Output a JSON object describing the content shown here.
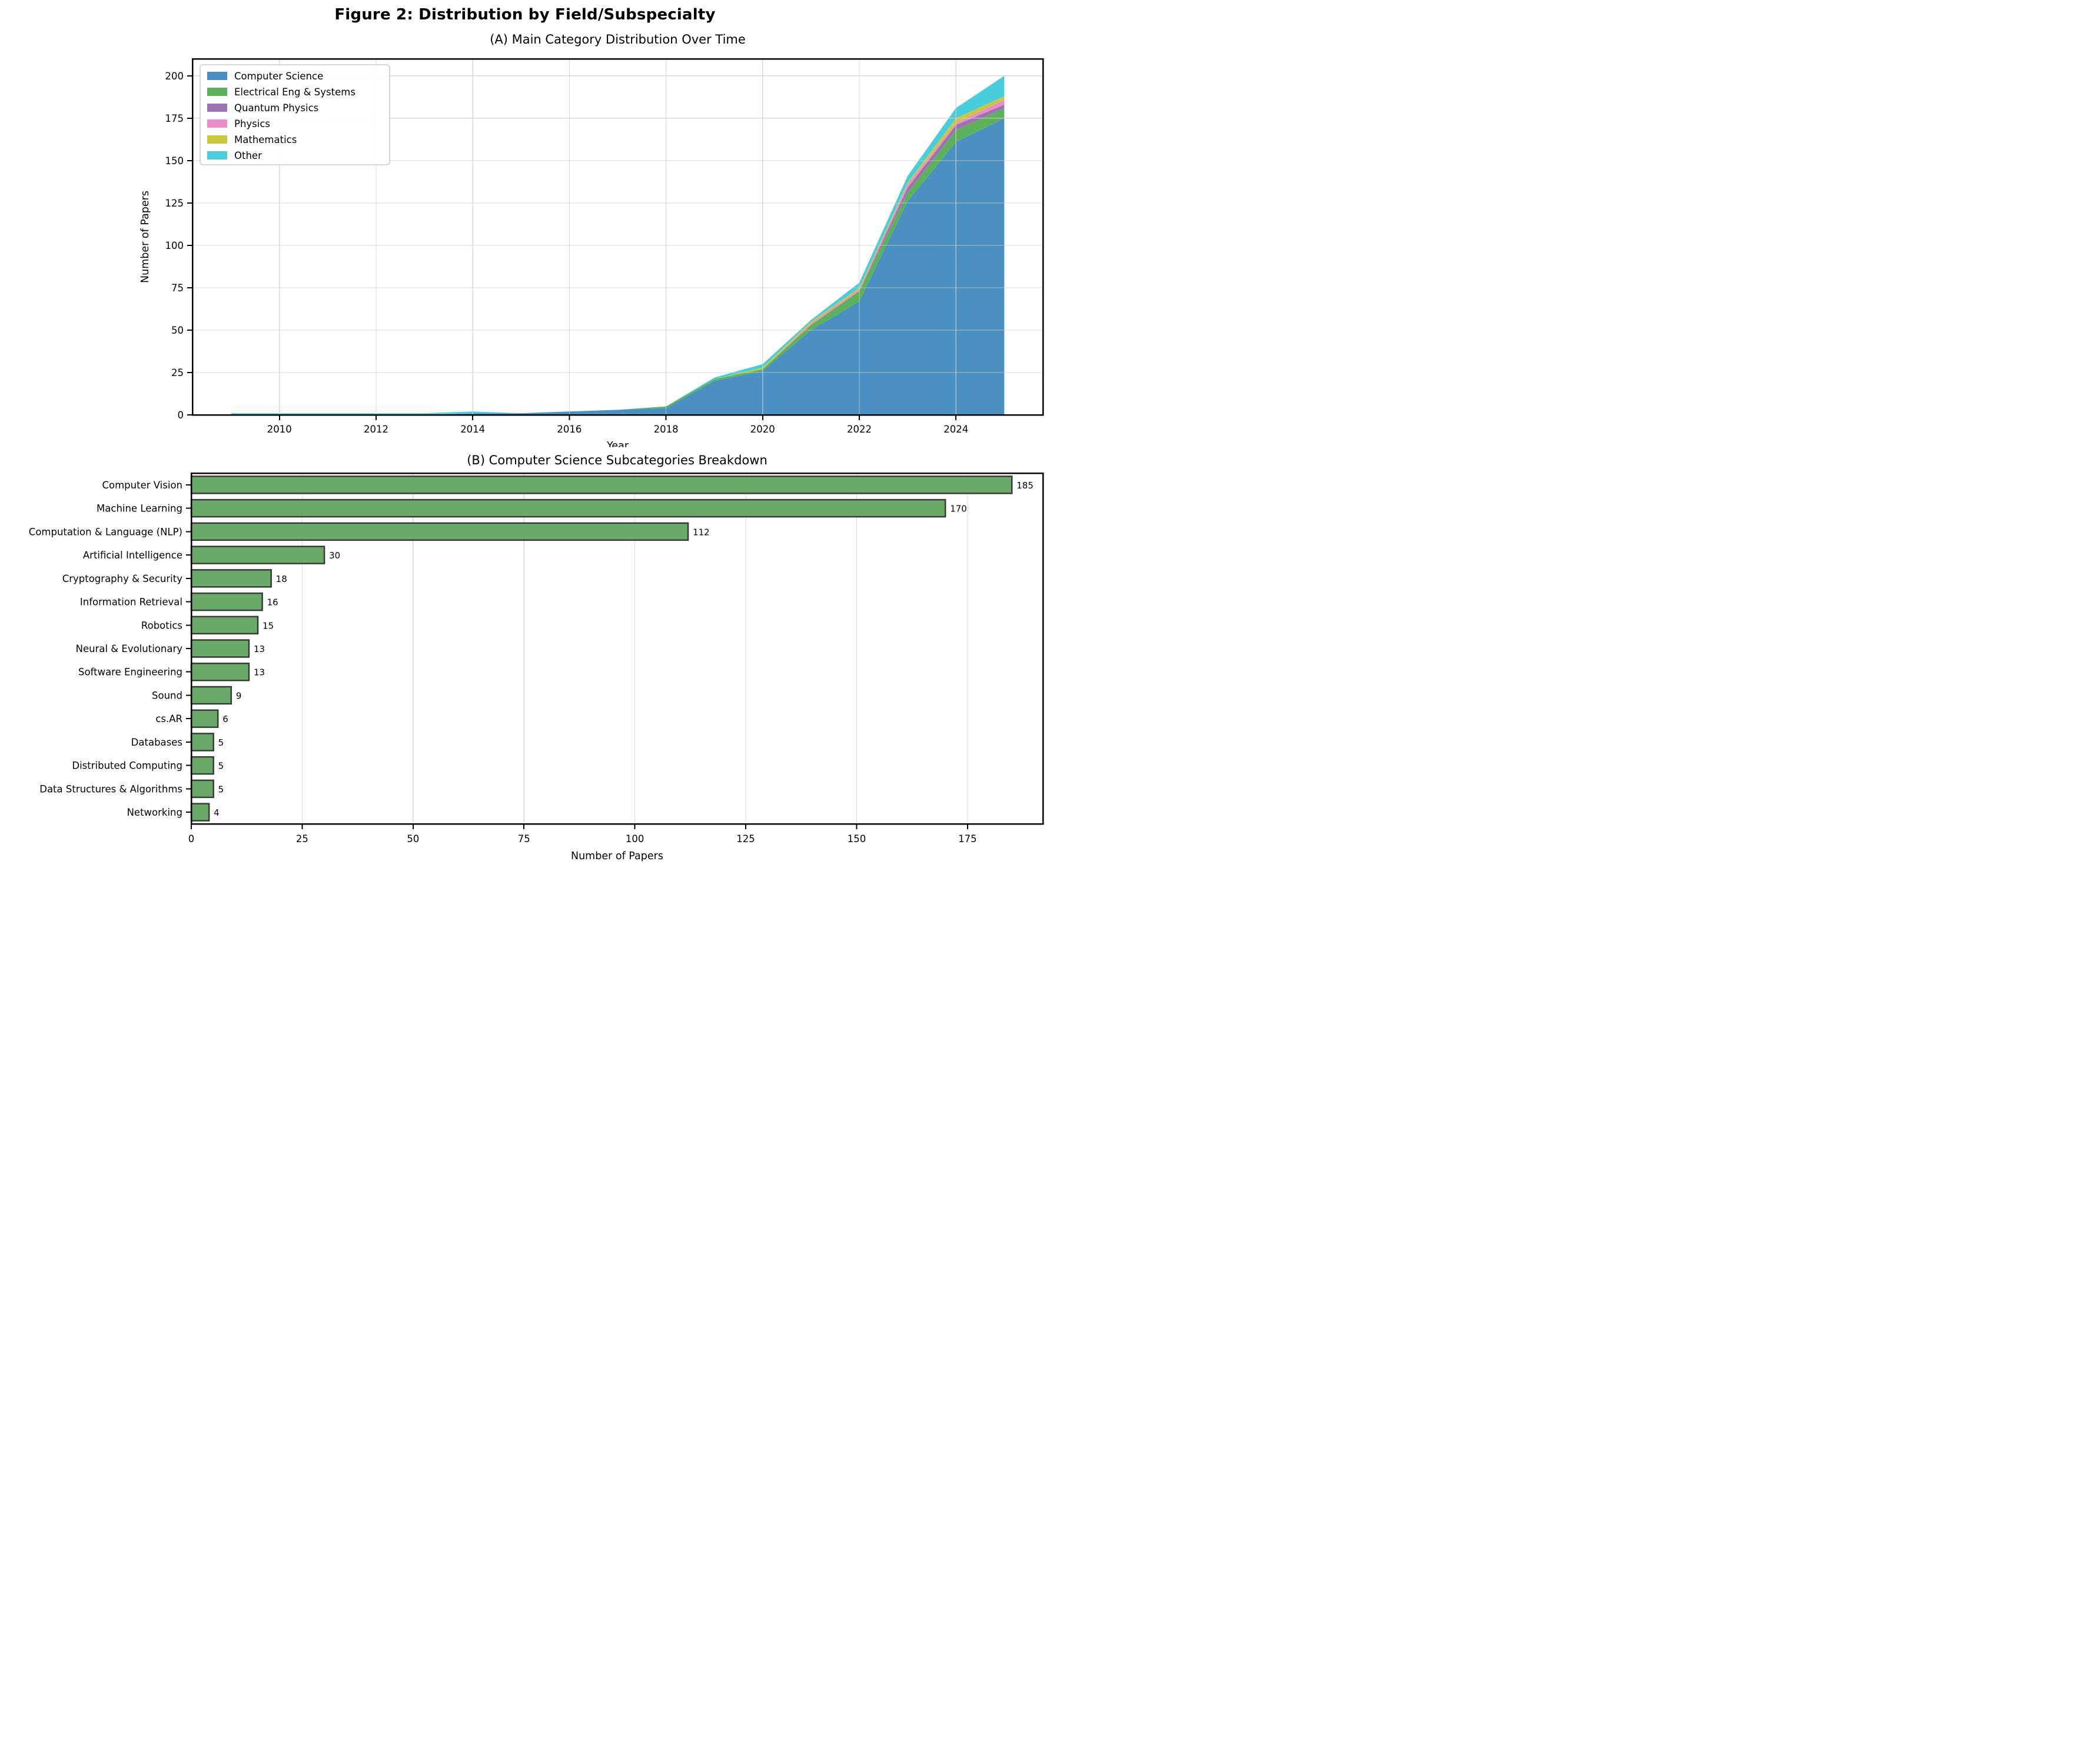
{
  "figure": {
    "title": "Figure 2: Distribution by Field/Subspecialty"
  },
  "chart_data": [
    {
      "type": "area",
      "stacked": true,
      "title": "(A) Main Category Distribution Over Time",
      "xlabel": "Year",
      "ylabel": "Number of Papers",
      "x": [
        2009,
        2010,
        2011,
        2012,
        2013,
        2014,
        2015,
        2016,
        2017,
        2018,
        2019,
        2020,
        2021,
        2022,
        2023,
        2024,
        2025
      ],
      "series": [
        {
          "name": "Computer Science",
          "color": "#4a90c2",
          "values": [
            0,
            0,
            0,
            0,
            0,
            1,
            1,
            2,
            3,
            4,
            20,
            26,
            50,
            67,
            126,
            161,
            175
          ]
        },
        {
          "name": "Electrical Eng & Systems",
          "color": "#5cb25a",
          "values": [
            0,
            0,
            0,
            0,
            0,
            0,
            0,
            0,
            0,
            1,
            1,
            1,
            3,
            6,
            5,
            7,
            6
          ]
        },
        {
          "name": "Quantum Physics",
          "color": "#9b73b4",
          "values": [
            0,
            0,
            0,
            0,
            0,
            0,
            0,
            0,
            0,
            0,
            0,
            0,
            0,
            0,
            3,
            3,
            2
          ]
        },
        {
          "name": "Physics",
          "color": "#e98ec8",
          "values": [
            0,
            0,
            0,
            0,
            0,
            0,
            0,
            0,
            0,
            0,
            0,
            0,
            1,
            1,
            2,
            1,
            3
          ]
        },
        {
          "name": "Mathematics",
          "color": "#c8c73e",
          "values": [
            0,
            0,
            0,
            0,
            0,
            0,
            0,
            0,
            0,
            0,
            0,
            1,
            1,
            1,
            1,
            3,
            2
          ]
        },
        {
          "name": "Other",
          "color": "#48cddc",
          "values": [
            1,
            1,
            1,
            1,
            1,
            1,
            0,
            0,
            0,
            0,
            1,
            2,
            1,
            3,
            4,
            6,
            12
          ]
        }
      ],
      "xlim": [
        2008.2,
        2025.8
      ],
      "ylim": [
        0,
        210
      ],
      "xticks": [
        2010,
        2012,
        2014,
        2016,
        2018,
        2020,
        2022,
        2024
      ],
      "yticks": [
        0,
        25,
        50,
        75,
        100,
        125,
        150,
        175,
        200
      ],
      "grid": true,
      "legend_position": "upper-left"
    },
    {
      "type": "bar",
      "orientation": "horizontal",
      "title": "(B) Computer Science Subcategories Breakdown",
      "xlabel": "Number of Papers",
      "categories": [
        "Computer Vision",
        "Machine Learning",
        "Computation & Language (NLP)",
        "Artificial Intelligence",
        "Cryptography & Security",
        "Information Retrieval",
        "Robotics",
        "Neural & Evolutionary",
        "Software Engineering",
        "Sound",
        "cs.AR",
        "Databases",
        "Distributed Computing",
        "Data Structures & Algorithms",
        "Networking"
      ],
      "values": [
        185,
        170,
        112,
        30,
        18,
        16,
        15,
        13,
        13,
        9,
        6,
        5,
        5,
        5,
        4
      ],
      "bar_color": "#6aaa68",
      "bar_edge_color": "#3a3a3a",
      "xlim": [
        0,
        192
      ],
      "xticks": [
        0,
        25,
        50,
        75,
        100,
        125,
        150,
        175
      ],
      "grid": true,
      "value_labels": true
    }
  ],
  "colors": {
    "grid": "#cccccc",
    "spine": "#000000",
    "legend_border": "#cccccc",
    "background": "#ffffff"
  }
}
